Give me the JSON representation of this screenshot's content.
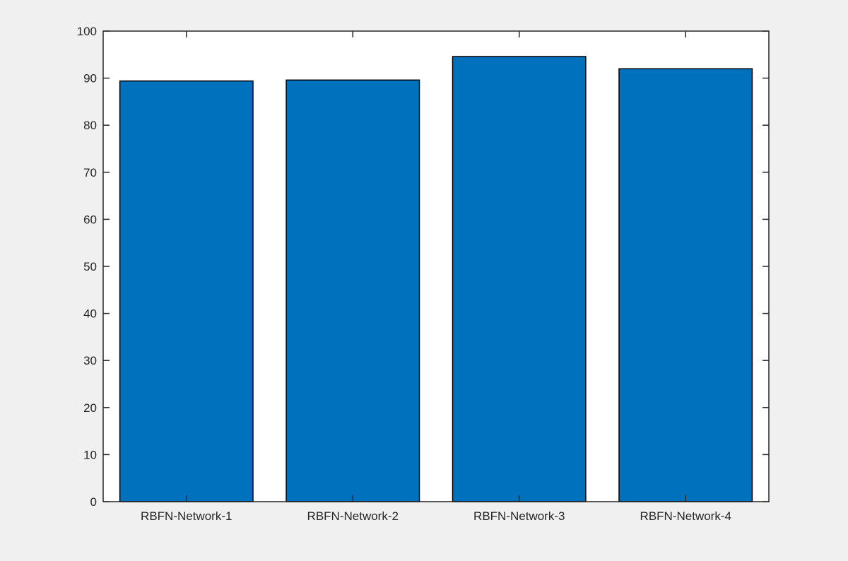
{
  "colors": {
    "figure_background": "#f0f0f0",
    "axes_background": "#ffffff",
    "bar_fill": "#0072bd",
    "bar_edge": "#000000",
    "axis_line": "#262626"
  },
  "chart_data": {
    "type": "bar",
    "title": "",
    "xlabel": "",
    "ylabel": "",
    "categories": [
      "RBFN-Network-1",
      "RBFN-Network-2",
      "RBFN-Network-3",
      "RBFN-Network-4"
    ],
    "values": [
      89.4,
      89.6,
      94.6,
      92.0
    ],
    "ylim": [
      0,
      100
    ],
    "yticks": [
      0,
      10,
      20,
      30,
      40,
      50,
      60,
      70,
      80,
      90,
      100
    ],
    "ytick_labels": [
      "0",
      "10",
      "20",
      "30",
      "40",
      "50",
      "60",
      "70",
      "80",
      "90",
      "100"
    ],
    "grid": false,
    "legend": "none",
    "box": true
  }
}
